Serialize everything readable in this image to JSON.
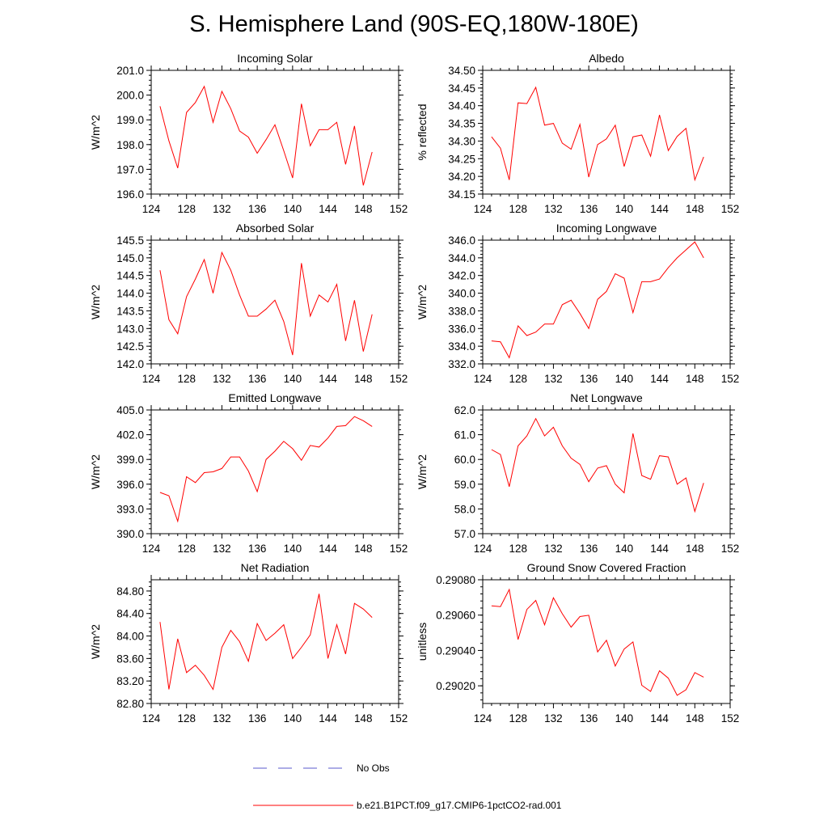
{
  "figure": {
    "title": "S. Hemisphere Land (90S-EQ,180W-180E)",
    "colors": {
      "model": "#ff0000",
      "obs": "#5a5acc",
      "axis": "#000000"
    }
  },
  "legend": {
    "items": [
      {
        "label": "No Obs",
        "style": "dashed",
        "color": "#5a5acc"
      },
      {
        "label": "b.e21.B1PCT.f09_g17.CMIP6-1pctCO2-rad.001",
        "style": "solid",
        "color": "#ff0000"
      }
    ]
  },
  "chart_data": [
    {
      "type": "line",
      "title": "Incoming Solar",
      "xlabel": "",
      "ylabel": "W/m^2",
      "xlim": [
        124,
        152
      ],
      "ylim": [
        196.0,
        201.0
      ],
      "xticks": [
        124,
        128,
        132,
        136,
        140,
        144,
        148,
        152
      ],
      "yticks": [
        "196.0",
        "197.0",
        "198.0",
        "199.0",
        "200.0",
        "201.0"
      ],
      "grid": false,
      "x": [
        125,
        126,
        127,
        128,
        129,
        130,
        131,
        132,
        133,
        134,
        135,
        136,
        137,
        138,
        139,
        140,
        141,
        142,
        143,
        144,
        145,
        146,
        147,
        148,
        149
      ],
      "series": [
        {
          "values": [
            199.55,
            198.15,
            197.05,
            199.3,
            199.7,
            200.35,
            198.9,
            200.15,
            199.45,
            198.55,
            198.3,
            197.65,
            198.2,
            198.8,
            197.75,
            196.65,
            199.65,
            197.95,
            198.6,
            198.6,
            198.9,
            197.2,
            198.75,
            196.35,
            197.7
          ]
        }
      ]
    },
    {
      "type": "line",
      "title": "Albedo",
      "xlabel": "",
      "ylabel": "% reflected",
      "xlim": [
        124,
        152
      ],
      "ylim": [
        34.15,
        34.5
      ],
      "xticks": [
        124,
        128,
        132,
        136,
        140,
        144,
        148,
        152
      ],
      "yticks": [
        "34.15",
        "34.20",
        "34.25",
        "34.30",
        "34.35",
        "34.40",
        "34.45",
        "34.50"
      ],
      "grid": false,
      "x": [
        125,
        126,
        127,
        128,
        129,
        130,
        131,
        132,
        133,
        134,
        135,
        136,
        137,
        138,
        139,
        140,
        141,
        142,
        143,
        144,
        145,
        146,
        147,
        148,
        149
      ],
      "series": [
        {
          "values": [
            34.312,
            34.28,
            34.19,
            34.408,
            34.406,
            34.452,
            34.345,
            34.35,
            34.294,
            34.277,
            34.347,
            34.198,
            34.29,
            34.306,
            34.345,
            34.228,
            34.312,
            34.317,
            34.257,
            34.374,
            34.273,
            34.313,
            34.336,
            34.19,
            34.255
          ]
        }
      ]
    },
    {
      "type": "line",
      "title": "Absorbed Solar",
      "xlabel": "",
      "ylabel": "W/m^2",
      "xlim": [
        124,
        152
      ],
      "ylim": [
        142.0,
        145.5
      ],
      "xticks": [
        124,
        128,
        132,
        136,
        140,
        144,
        148,
        152
      ],
      "yticks": [
        "142.0",
        "142.5",
        "143.0",
        "143.5",
        "144.0",
        "144.5",
        "145.0",
        "145.5"
      ],
      "grid": false,
      "x": [
        125,
        126,
        127,
        128,
        129,
        130,
        131,
        132,
        133,
        134,
        135,
        136,
        137,
        138,
        139,
        140,
        141,
        142,
        143,
        144,
        145,
        146,
        147,
        148,
        149
      ],
      "series": [
        {
          "values": [
            144.65,
            143.25,
            142.85,
            143.9,
            144.4,
            144.95,
            144.0,
            145.15,
            144.65,
            143.95,
            143.35,
            143.35,
            143.55,
            143.8,
            143.2,
            142.25,
            144.85,
            143.35,
            143.95,
            143.75,
            144.25,
            142.65,
            143.8,
            142.35,
            143.4
          ]
        }
      ]
    },
    {
      "type": "line",
      "title": "Incoming Longwave",
      "xlabel": "",
      "ylabel": "W/m^2",
      "xlim": [
        124,
        152
      ],
      "ylim": [
        332.0,
        346.0
      ],
      "xticks": [
        124,
        128,
        132,
        136,
        140,
        144,
        148,
        152
      ],
      "yticks": [
        "332.0",
        "334.0",
        "336.0",
        "338.0",
        "340.0",
        "342.0",
        "344.0",
        "346.0"
      ],
      "grid": false,
      "x": [
        125,
        126,
        127,
        128,
        129,
        130,
        131,
        132,
        133,
        134,
        135,
        136,
        137,
        138,
        139,
        140,
        141,
        142,
        143,
        144,
        145,
        146,
        147,
        148,
        149
      ],
      "series": [
        {
          "values": [
            334.6,
            334.5,
            332.7,
            336.3,
            335.2,
            335.6,
            336.5,
            336.5,
            338.7,
            339.2,
            337.7,
            336.0,
            339.3,
            340.2,
            342.2,
            341.7,
            337.8,
            341.3,
            341.3,
            341.6,
            342.9,
            344.0,
            344.9,
            345.8,
            344.0
          ]
        }
      ]
    },
    {
      "type": "line",
      "title": "Emitted Longwave",
      "xlabel": "",
      "ylabel": "W/m^2",
      "xlim": [
        124,
        152
      ],
      "ylim": [
        390.0,
        405.0
      ],
      "xticks": [
        124,
        128,
        132,
        136,
        140,
        144,
        148,
        152
      ],
      "yticks": [
        "390.0",
        "393.0",
        "396.0",
        "399.0",
        "402.0",
        "405.0"
      ],
      "grid": false,
      "x": [
        125,
        126,
        127,
        128,
        129,
        130,
        131,
        132,
        133,
        134,
        135,
        136,
        137,
        138,
        139,
        140,
        141,
        142,
        143,
        144,
        145,
        146,
        147,
        148,
        149
      ],
      "series": [
        {
          "values": [
            395.0,
            394.6,
            391.5,
            396.9,
            396.2,
            397.4,
            397.5,
            397.9,
            399.3,
            399.3,
            397.6,
            395.1,
            399.0,
            400.0,
            401.2,
            400.3,
            398.9,
            400.7,
            400.5,
            401.6,
            403.0,
            403.1,
            404.2,
            403.7,
            403.0
          ]
        }
      ]
    },
    {
      "type": "line",
      "title": "Net Longwave",
      "xlabel": "",
      "ylabel": "W/m^2",
      "xlim": [
        124,
        152
      ],
      "ylim": [
        57.0,
        62.0
      ],
      "xticks": [
        124,
        128,
        132,
        136,
        140,
        144,
        148,
        152
      ],
      "yticks": [
        "57.0",
        "58.0",
        "59.0",
        "60.0",
        "61.0",
        "62.0"
      ],
      "grid": false,
      "x": [
        125,
        126,
        127,
        128,
        129,
        130,
        131,
        132,
        133,
        134,
        135,
        136,
        137,
        138,
        139,
        140,
        141,
        142,
        143,
        144,
        145,
        146,
        147,
        148,
        149
      ],
      "series": [
        {
          "values": [
            60.4,
            60.2,
            58.9,
            60.55,
            60.95,
            61.65,
            60.95,
            61.3,
            60.55,
            60.05,
            59.8,
            59.1,
            59.65,
            59.75,
            59.0,
            58.65,
            61.05,
            59.35,
            59.2,
            60.15,
            60.1,
            59.0,
            59.25,
            57.9,
            59.05
          ]
        }
      ]
    },
    {
      "type": "line",
      "title": "Net Radiation",
      "xlabel": "",
      "ylabel": "W/m^2",
      "xlim": [
        124,
        152
      ],
      "ylim": [
        82.8,
        85.0
      ],
      "xticks": [
        124,
        128,
        132,
        136,
        140,
        144,
        148,
        152
      ],
      "yticks": [
        "82.80",
        "83.20",
        "83.60",
        "84.00",
        "84.40",
        "84.80"
      ],
      "grid": false,
      "x": [
        125,
        126,
        127,
        128,
        129,
        130,
        131,
        132,
        133,
        134,
        135,
        136,
        137,
        138,
        139,
        140,
        141,
        142,
        143,
        144,
        145,
        146,
        147,
        148,
        149
      ],
      "series": [
        {
          "values": [
            84.25,
            83.05,
            83.95,
            83.35,
            83.48,
            83.3,
            83.05,
            83.8,
            84.1,
            83.9,
            83.55,
            84.22,
            83.92,
            84.05,
            84.2,
            83.6,
            83.8,
            84.02,
            84.75,
            83.6,
            84.2,
            83.68,
            84.58,
            84.48,
            84.33
          ]
        }
      ]
    },
    {
      "type": "line",
      "title": "Ground Snow Covered Fraction",
      "xlabel": "",
      "ylabel": "unitless",
      "xlim": [
        124,
        152
      ],
      "ylim": [
        0.2901,
        0.2908
      ],
      "xticks": [
        124,
        128,
        132,
        136,
        140,
        144,
        148,
        152
      ],
      "yticks": [
        "0.29020",
        "0.29040",
        "0.29060",
        "0.29080"
      ],
      "grid": false,
      "x": [
        125,
        126,
        127,
        128,
        129,
        130,
        131,
        132,
        133,
        134,
        135,
        136,
        137,
        138,
        139,
        140,
        141,
        142,
        143,
        144,
        145,
        146,
        147,
        148,
        149
      ],
      "series": [
        {
          "values": [
            0.290652,
            0.290648,
            0.290745,
            0.290462,
            0.290632,
            0.290683,
            0.290545,
            0.290698,
            0.290608,
            0.290532,
            0.290592,
            0.290599,
            0.290392,
            0.290458,
            0.290312,
            0.290408,
            0.290448,
            0.290203,
            0.290168,
            0.290285,
            0.290243,
            0.290146,
            0.290178,
            0.290275,
            0.290249
          ]
        }
      ]
    }
  ]
}
